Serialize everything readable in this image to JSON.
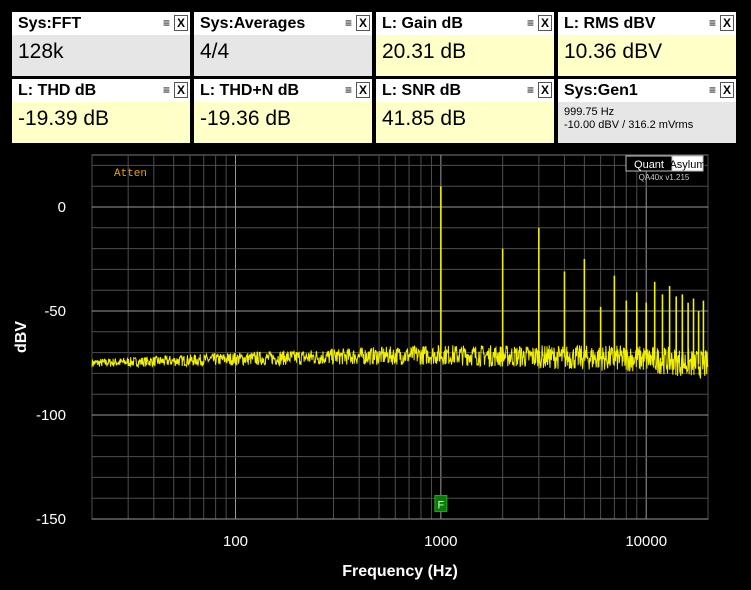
{
  "tiles": [
    {
      "title": "Sys:FFT",
      "value": "128k",
      "style": "gray"
    },
    {
      "title": "Sys:Averages",
      "value": "4/4",
      "style": "gray"
    },
    {
      "title": "L: Gain dB",
      "value": "20.31 dB",
      "style": "yellow"
    },
    {
      "title": "L: RMS dBV",
      "value": "10.36 dBV",
      "style": "yellow"
    },
    {
      "title": "L: THD dB",
      "value": "-19.39 dB",
      "style": "yellow"
    },
    {
      "title": "L: THD+N dB",
      "value": "-19.36 dB",
      "style": "yellow"
    },
    {
      "title": "L: SNR dB",
      "value": "41.85 dB",
      "style": "yellow"
    },
    {
      "title": "Sys:Gen1",
      "line1": "999.75 Hz",
      "line2": "-10.00 dBV  / 316.2 mVrms",
      "style": "gray"
    }
  ],
  "tile_controls": {
    "minimize": "≡",
    "close": "X"
  },
  "chart_data": {
    "type": "line",
    "xlabel": "Frequency (Hz)",
    "ylabel": "dBV",
    "x_scale": "log",
    "xlim": [
      20,
      20000
    ],
    "ylim": [
      -150,
      25
    ],
    "x_ticks": [
      {
        "v": 100,
        "label": "100"
      },
      {
        "v": 1000,
        "label": "1000"
      },
      {
        "v": 10000,
        "label": "10000"
      }
    ],
    "y_ticks": [
      {
        "v": 0,
        "label": "0"
      },
      {
        "v": -50,
        "label": "-50"
      },
      {
        "v": -100,
        "label": "-100"
      },
      {
        "v": -150,
        "label": "-150"
      }
    ],
    "grid": true,
    "line_color": "#f0f000",
    "noise_floor": [
      [
        20,
        -75
      ],
      [
        50,
        -74
      ],
      [
        100,
        -73
      ],
      [
        300,
        -72
      ],
      [
        1000,
        -71
      ],
      [
        3000,
        -72
      ],
      [
        10000,
        -73
      ],
      [
        20000,
        -76
      ]
    ],
    "peaks": [
      {
        "x": 1000,
        "y": 10
      },
      {
        "x": 2000,
        "y": -20
      },
      {
        "x": 3000,
        "y": -10
      },
      {
        "x": 4000,
        "y": -31
      },
      {
        "x": 5000,
        "y": -25
      },
      {
        "x": 6000,
        "y": -48
      },
      {
        "x": 7000,
        "y": -33
      },
      {
        "x": 8000,
        "y": -45
      },
      {
        "x": 9000,
        "y": -41
      },
      {
        "x": 10000,
        "y": -46
      },
      {
        "x": 11000,
        "y": -36
      },
      {
        "x": 12000,
        "y": -42
      },
      {
        "x": 13000,
        "y": -38
      },
      {
        "x": 14000,
        "y": -43
      },
      {
        "x": 15000,
        "y": -42
      },
      {
        "x": 16000,
        "y": -46
      },
      {
        "x": 17000,
        "y": -44
      },
      {
        "x": 18000,
        "y": -50
      },
      {
        "x": 19000,
        "y": -45
      }
    ],
    "annotation": "Atten",
    "marker_label": "F",
    "marker_x": 1000,
    "marker_y": -143,
    "logo": {
      "brand_a": "Quant",
      "brand_b": "Asylum",
      "version": "QA40x v1.215"
    }
  }
}
